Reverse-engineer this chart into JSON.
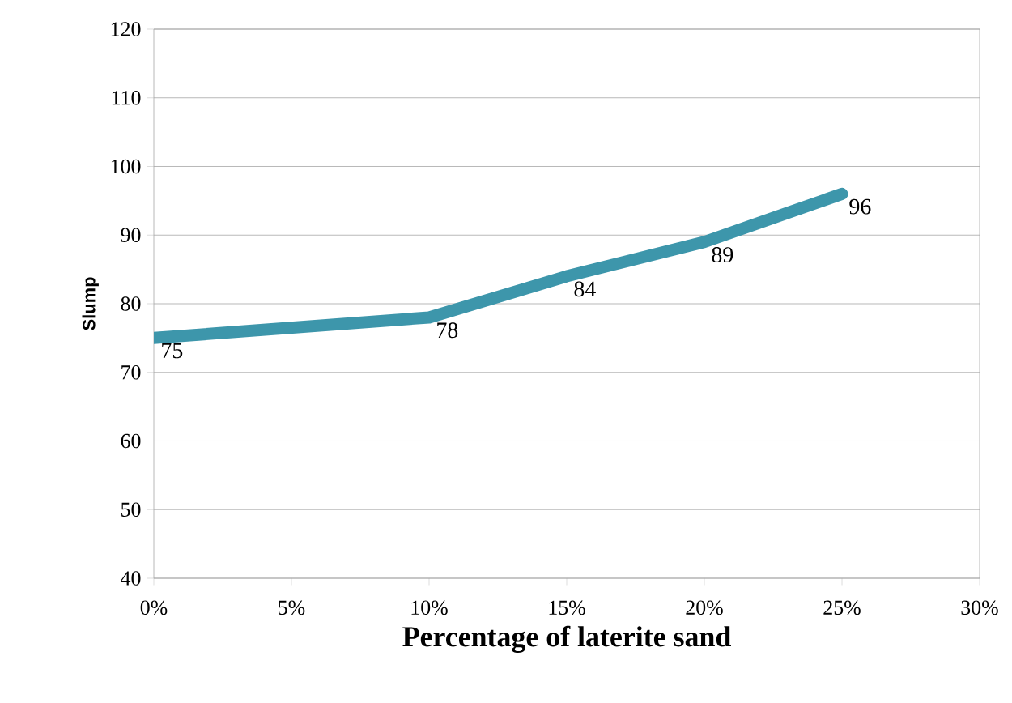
{
  "chart_data": {
    "type": "line",
    "xlabel": "Percentage of laterite sand",
    "ylabel": "Slump",
    "x": [
      0,
      10,
      15,
      20,
      25
    ],
    "series": [
      {
        "color": "#3d96ab",
        "values": [
          75,
          78,
          84,
          89,
          96
        ]
      }
    ],
    "xlim": [
      0,
      30
    ],
    "xticks": [
      {
        "value": 0,
        "label": "0%"
      },
      {
        "value": 5,
        "label": "5%"
      },
      {
        "value": 10,
        "label": "10%"
      },
      {
        "value": 15,
        "label": "15%"
      },
      {
        "value": 20,
        "label": "20%"
      },
      {
        "value": 25,
        "label": "25%"
      },
      {
        "value": 30,
        "label": "30%"
      }
    ],
    "ylim": [
      40,
      120
    ],
    "yticks": [
      40,
      50,
      60,
      70,
      80,
      90,
      100,
      110,
      120
    ],
    "grid": "y",
    "marker": "none",
    "line_style": "solid",
    "data_labels": true
  }
}
